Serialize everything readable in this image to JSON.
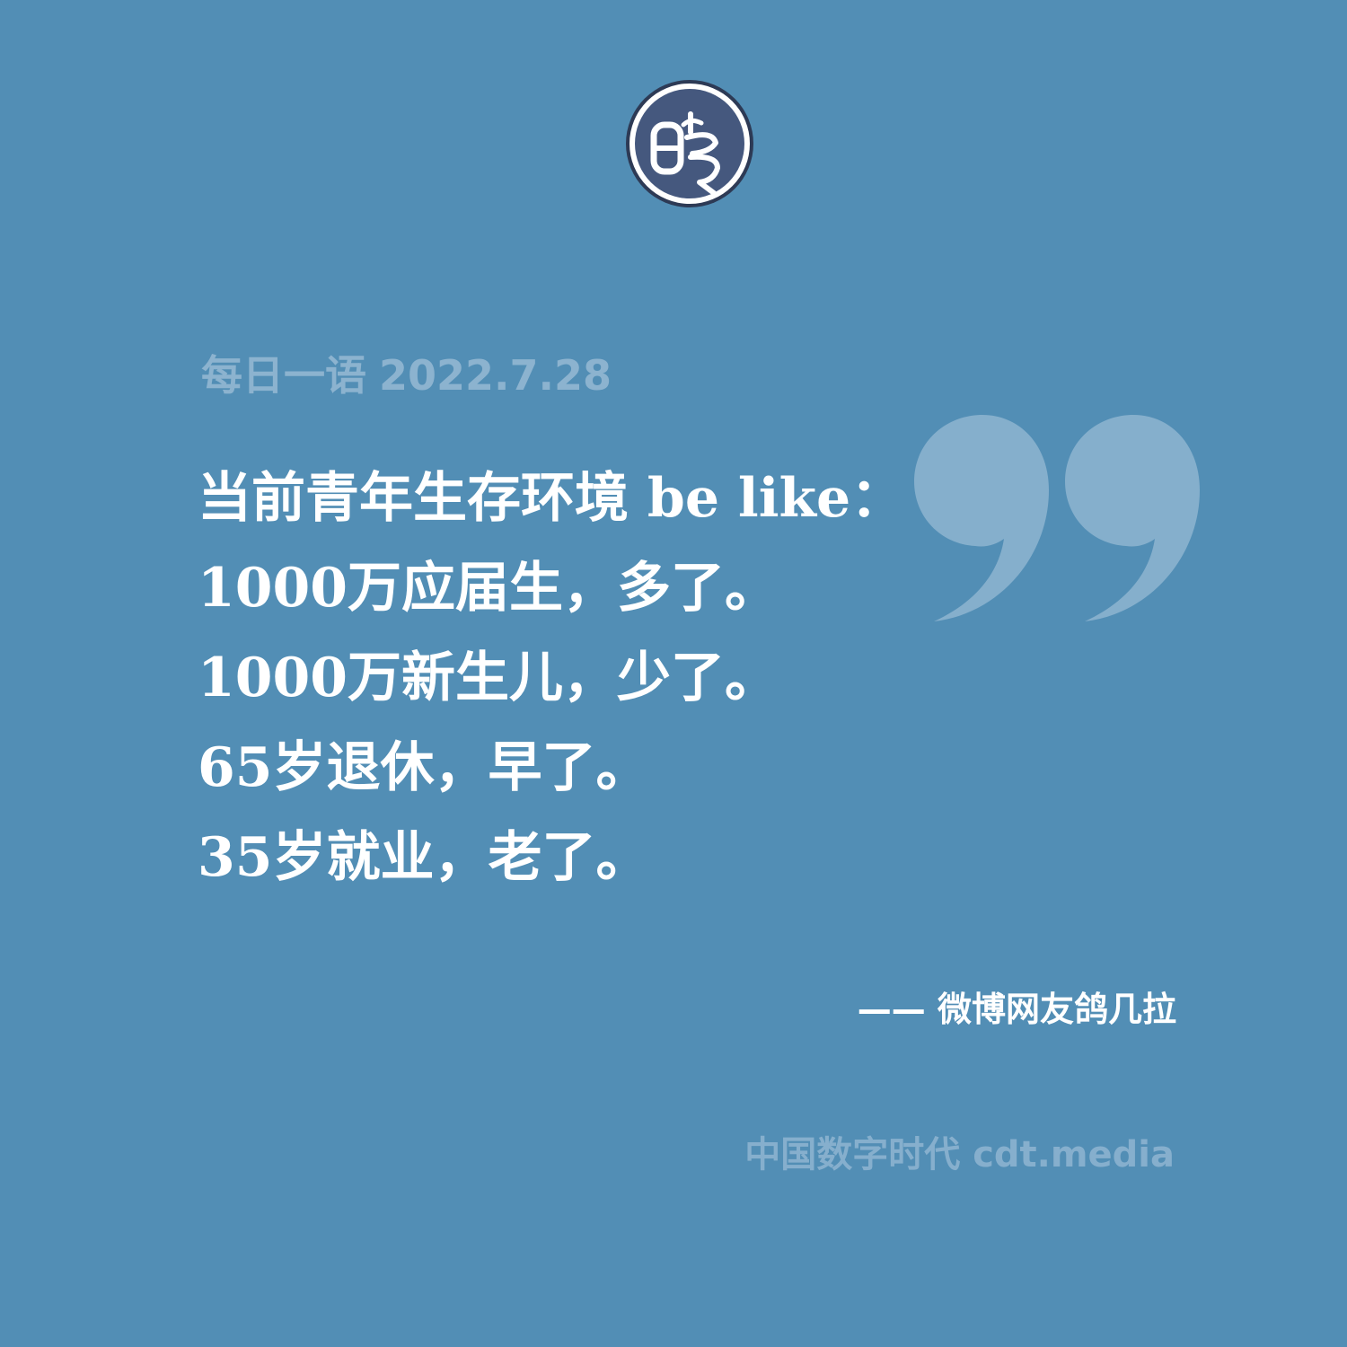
{
  "colors": {
    "background": "#528eb5",
    "date_text": "#8cb3cf",
    "quote_text": "#ffffff",
    "quote_mark": "#85afcc",
    "attribution_text": "#ffffff",
    "footer_text": "#86afcd",
    "logo_fill": "#45587e",
    "logo_ring": "#ffffff",
    "logo_outline": "#2d3a55"
  },
  "logo": {
    "icon": "cdt-seal-logo-icon"
  },
  "header": {
    "label": "每日一语",
    "date": "2022.7.28"
  },
  "decoration": {
    "icon": "closing-quote-icon"
  },
  "quote": {
    "lines": [
      "当前青年生存环境 be like：",
      "1000万应届生，多了。",
      "1000万新生儿，少了。",
      "65岁退休，早了。",
      "35岁就业，老了。"
    ]
  },
  "attribution": {
    "text": "—— 微博网友鸽几拉"
  },
  "footer": {
    "text": "中国数字时代 cdt.media"
  }
}
